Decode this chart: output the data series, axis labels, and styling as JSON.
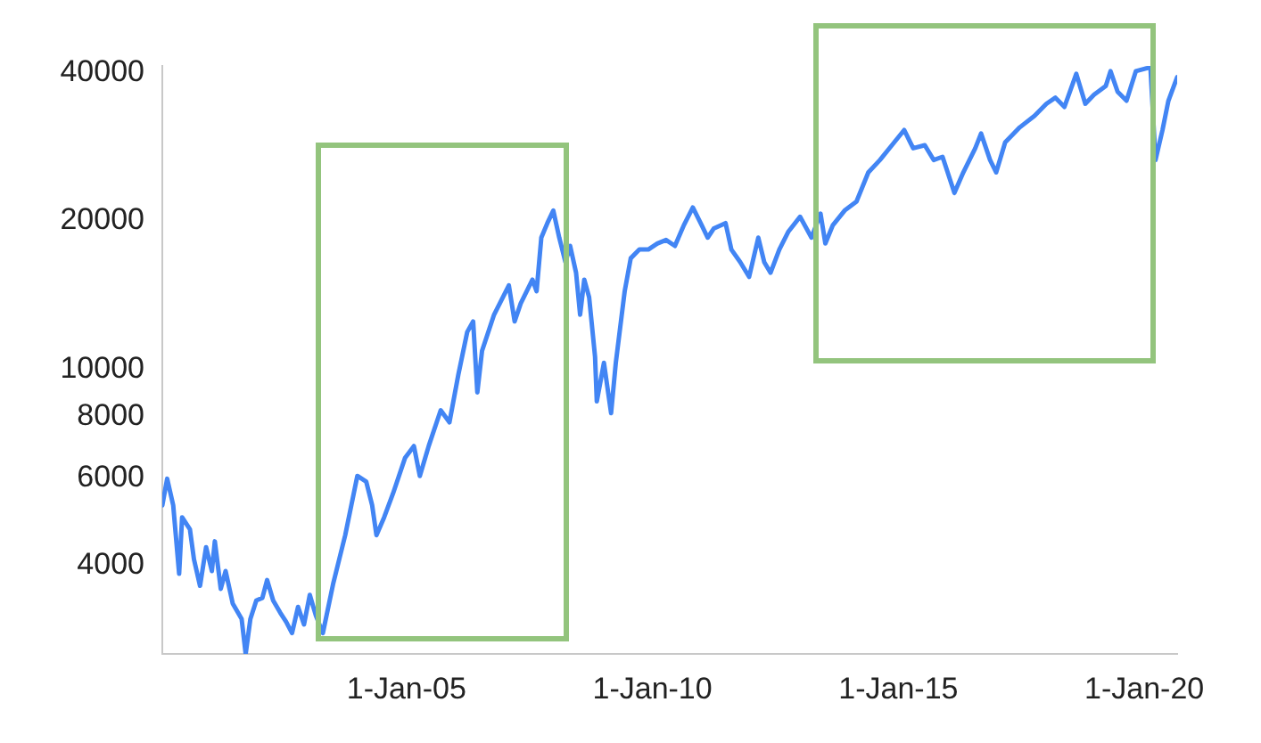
{
  "chart_data": {
    "type": "line",
    "log": "y",
    "xlim": [
      "2000-01-15",
      "2020-09-01"
    ],
    "xticks": [
      {
        "value": "2005-01-01",
        "label": "1-Jan-05"
      },
      {
        "value": "2010-01-01",
        "label": "1-Jan-10"
      },
      {
        "value": "2015-01-01",
        "label": "1-Jan-15"
      },
      {
        "value": "2020-01-01",
        "label": "1-Jan-20"
      }
    ],
    "ylim": [
      2640,
      41300
    ],
    "yticks": [
      4000,
      6000,
      8000,
      10000,
      20000,
      40000
    ],
    "series": [
      {
        "color": "#4285f4",
        "x": [
          "2000-01-15",
          "2000-02-20",
          "2000-04-05",
          "2000-05-19",
          "2000-06-10",
          "2000-08-07",
          "2000-09-06",
          "2000-10-21",
          "2000-12-05",
          "2001-01-17",
          "2001-02-08",
          "2001-03-24",
          "2001-04-29",
          "2001-06-21",
          "2001-08-26",
          "2001-09-25",
          "2001-10-30",
          "2001-12-13",
          "2002-01-27",
          "2002-03-03",
          "2002-04-17",
          "2002-06-09",
          "2002-07-22",
          "2002-09-04",
          "2002-10-19",
          "2002-12-02",
          "2003-01-14",
          "2003-02-28",
          "2003-04-21",
          "2003-07-08",
          "2003-10-04",
          "2004-01-02",
          "2004-03-08",
          "2004-04-21",
          "2004-05-23",
          "2004-07-19",
          "2004-09-23",
          "2004-12-21",
          "2005-02-25",
          "2005-04-10",
          "2005-06-15",
          "2005-09-12",
          "2005-11-16",
          "2006-01-21",
          "2006-03-28",
          "2006-05-11",
          "2006-06-11",
          "2006-07-16",
          "2006-10-13",
          "2007-01-31",
          "2007-03-15",
          "2007-04-29",
          "2007-07-25",
          "2007-08-25",
          "2007-09-29",
          "2007-11-13",
          "2007-12-27",
          "2008-02-09",
          "2008-03-26",
          "2008-04-30",
          "2008-06-13",
          "2008-07-13",
          "2008-08-13",
          "2008-09-18",
          "2008-11-01",
          "2008-11-14",
          "2009-01-06",
          "2009-02-28",
          "2009-04-04",
          "2009-06-09",
          "2009-07-24",
          "2009-09-26",
          "2009-12-01",
          "2010-02-06",
          "2010-04-12",
          "2010-06-17",
          "2010-08-22",
          "2010-10-28",
          "2011-01-02",
          "2011-02-15",
          "2011-04-01",
          "2011-06-28",
          "2011-08-10",
          "2011-10-15",
          "2011-12-20",
          "2012-02-26",
          "2012-04-10",
          "2012-05-27",
          "2012-07-31",
          "2012-10-05",
          "2013-01-01",
          "2013-03-27",
          "2013-06-02",
          "2013-07-08",
          "2013-09-01",
          "2013-11-28",
          "2014-02-24",
          "2014-05-23",
          "2014-08-17",
          "2014-11-14",
          "2015-02-13",
          "2015-04-21",
          "2015-07-16",
          "2015-09-20",
          "2015-11-25",
          "2016-02-21",
          "2016-04-27",
          "2016-07-25",
          "2016-09-06",
          "2016-11-12",
          "2016-12-27",
          "2017-03-04",
          "2017-06-21",
          "2017-10-08",
          "2018-01-04",
          "2018-03-12",
          "2018-05-18",
          "2018-08-14",
          "2018-10-20",
          "2018-12-24",
          "2019-03-21",
          "2019-04-25",
          "2019-06-17",
          "2019-08-22",
          "2019-10-30",
          "2020-01-25",
          "2020-02-15",
          "2020-03-24",
          "2020-05-15",
          "2020-06-28",
          "2020-09-01"
        ],
        "values": [
          5290,
          5990,
          5290,
          3840,
          5000,
          4730,
          4110,
          3630,
          4350,
          3890,
          4470,
          3580,
          3890,
          3340,
          3110,
          2640,
          3110,
          3390,
          3430,
          3730,
          3390,
          3200,
          3070,
          2910,
          3290,
          3030,
          3480,
          3160,
          2910,
          3680,
          4600,
          6070,
          5910,
          5290,
          4600,
          5000,
          5590,
          6600,
          6980,
          6070,
          6980,
          8250,
          7800,
          9750,
          11900,
          12500,
          8970,
          10900,
          12900,
          14800,
          12500,
          13600,
          15200,
          14400,
          18500,
          19800,
          21000,
          18500,
          16500,
          17800,
          15700,
          12900,
          15200,
          14000,
          10600,
          8600,
          10300,
          8140,
          10300,
          14400,
          16800,
          17500,
          17500,
          18000,
          18300,
          17800,
          19600,
          21300,
          19600,
          18500,
          19300,
          19800,
          17500,
          16500,
          15400,
          18500,
          16500,
          15700,
          17500,
          19000,
          20400,
          18500,
          20700,
          18000,
          19600,
          21000,
          21900,
          25100,
          26600,
          28500,
          30600,
          28100,
          28500,
          26600,
          27000,
          22800,
          25100,
          28100,
          30100,
          26600,
          25100,
          28900,
          31000,
          32700,
          34600,
          35600,
          34100,
          39800,
          34600,
          36100,
          37600,
          40300,
          36600,
          35100,
          40300,
          40900,
          41300,
          26600,
          30600,
          35100,
          39200
        ]
      }
    ]
  }
}
